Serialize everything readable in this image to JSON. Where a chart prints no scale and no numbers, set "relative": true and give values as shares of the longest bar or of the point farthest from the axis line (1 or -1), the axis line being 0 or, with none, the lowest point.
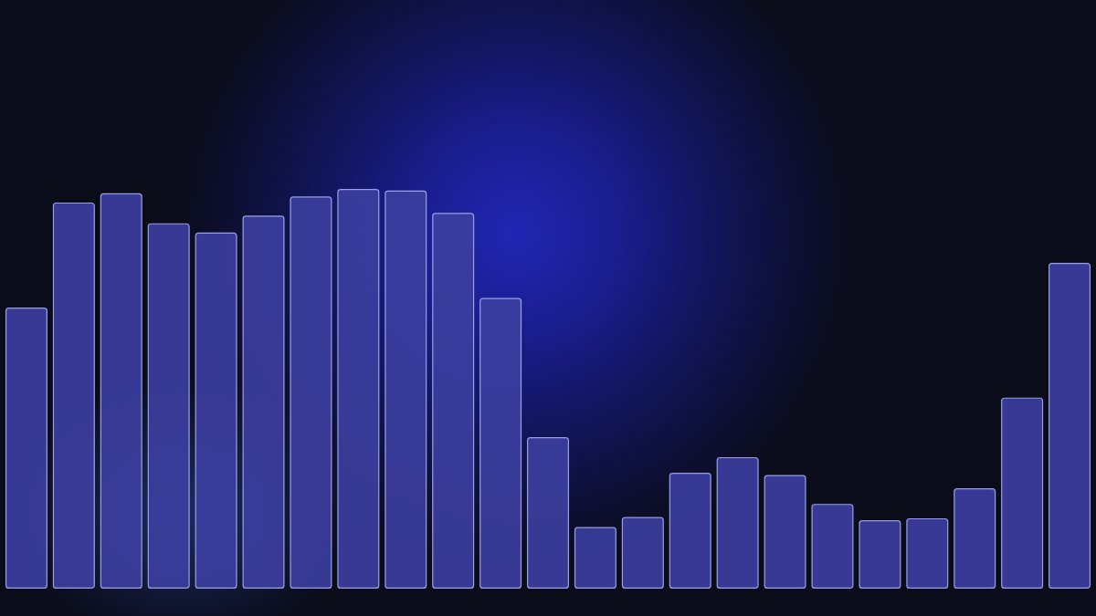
{
  "chart_data": {
    "type": "bar",
    "relative": true,
    "categories": [
      null,
      null,
      null,
      null,
      null,
      null,
      null,
      null,
      null,
      null,
      null,
      null,
      null,
      null,
      null,
      null,
      null,
      null,
      null,
      null,
      null,
      null,
      null
    ],
    "values": [
      0.703,
      0.966,
      0.989,
      0.914,
      0.891,
      0.933,
      0.981,
      1,
      0.996,
      0.94,
      0.727,
      0.379,
      0.154,
      0.179,
      0.29,
      0.329,
      0.284,
      0.212,
      0.171,
      0.176,
      0.251,
      0.478,
      0.815
    ],
    "color": "#3c3e9e"
  }
}
